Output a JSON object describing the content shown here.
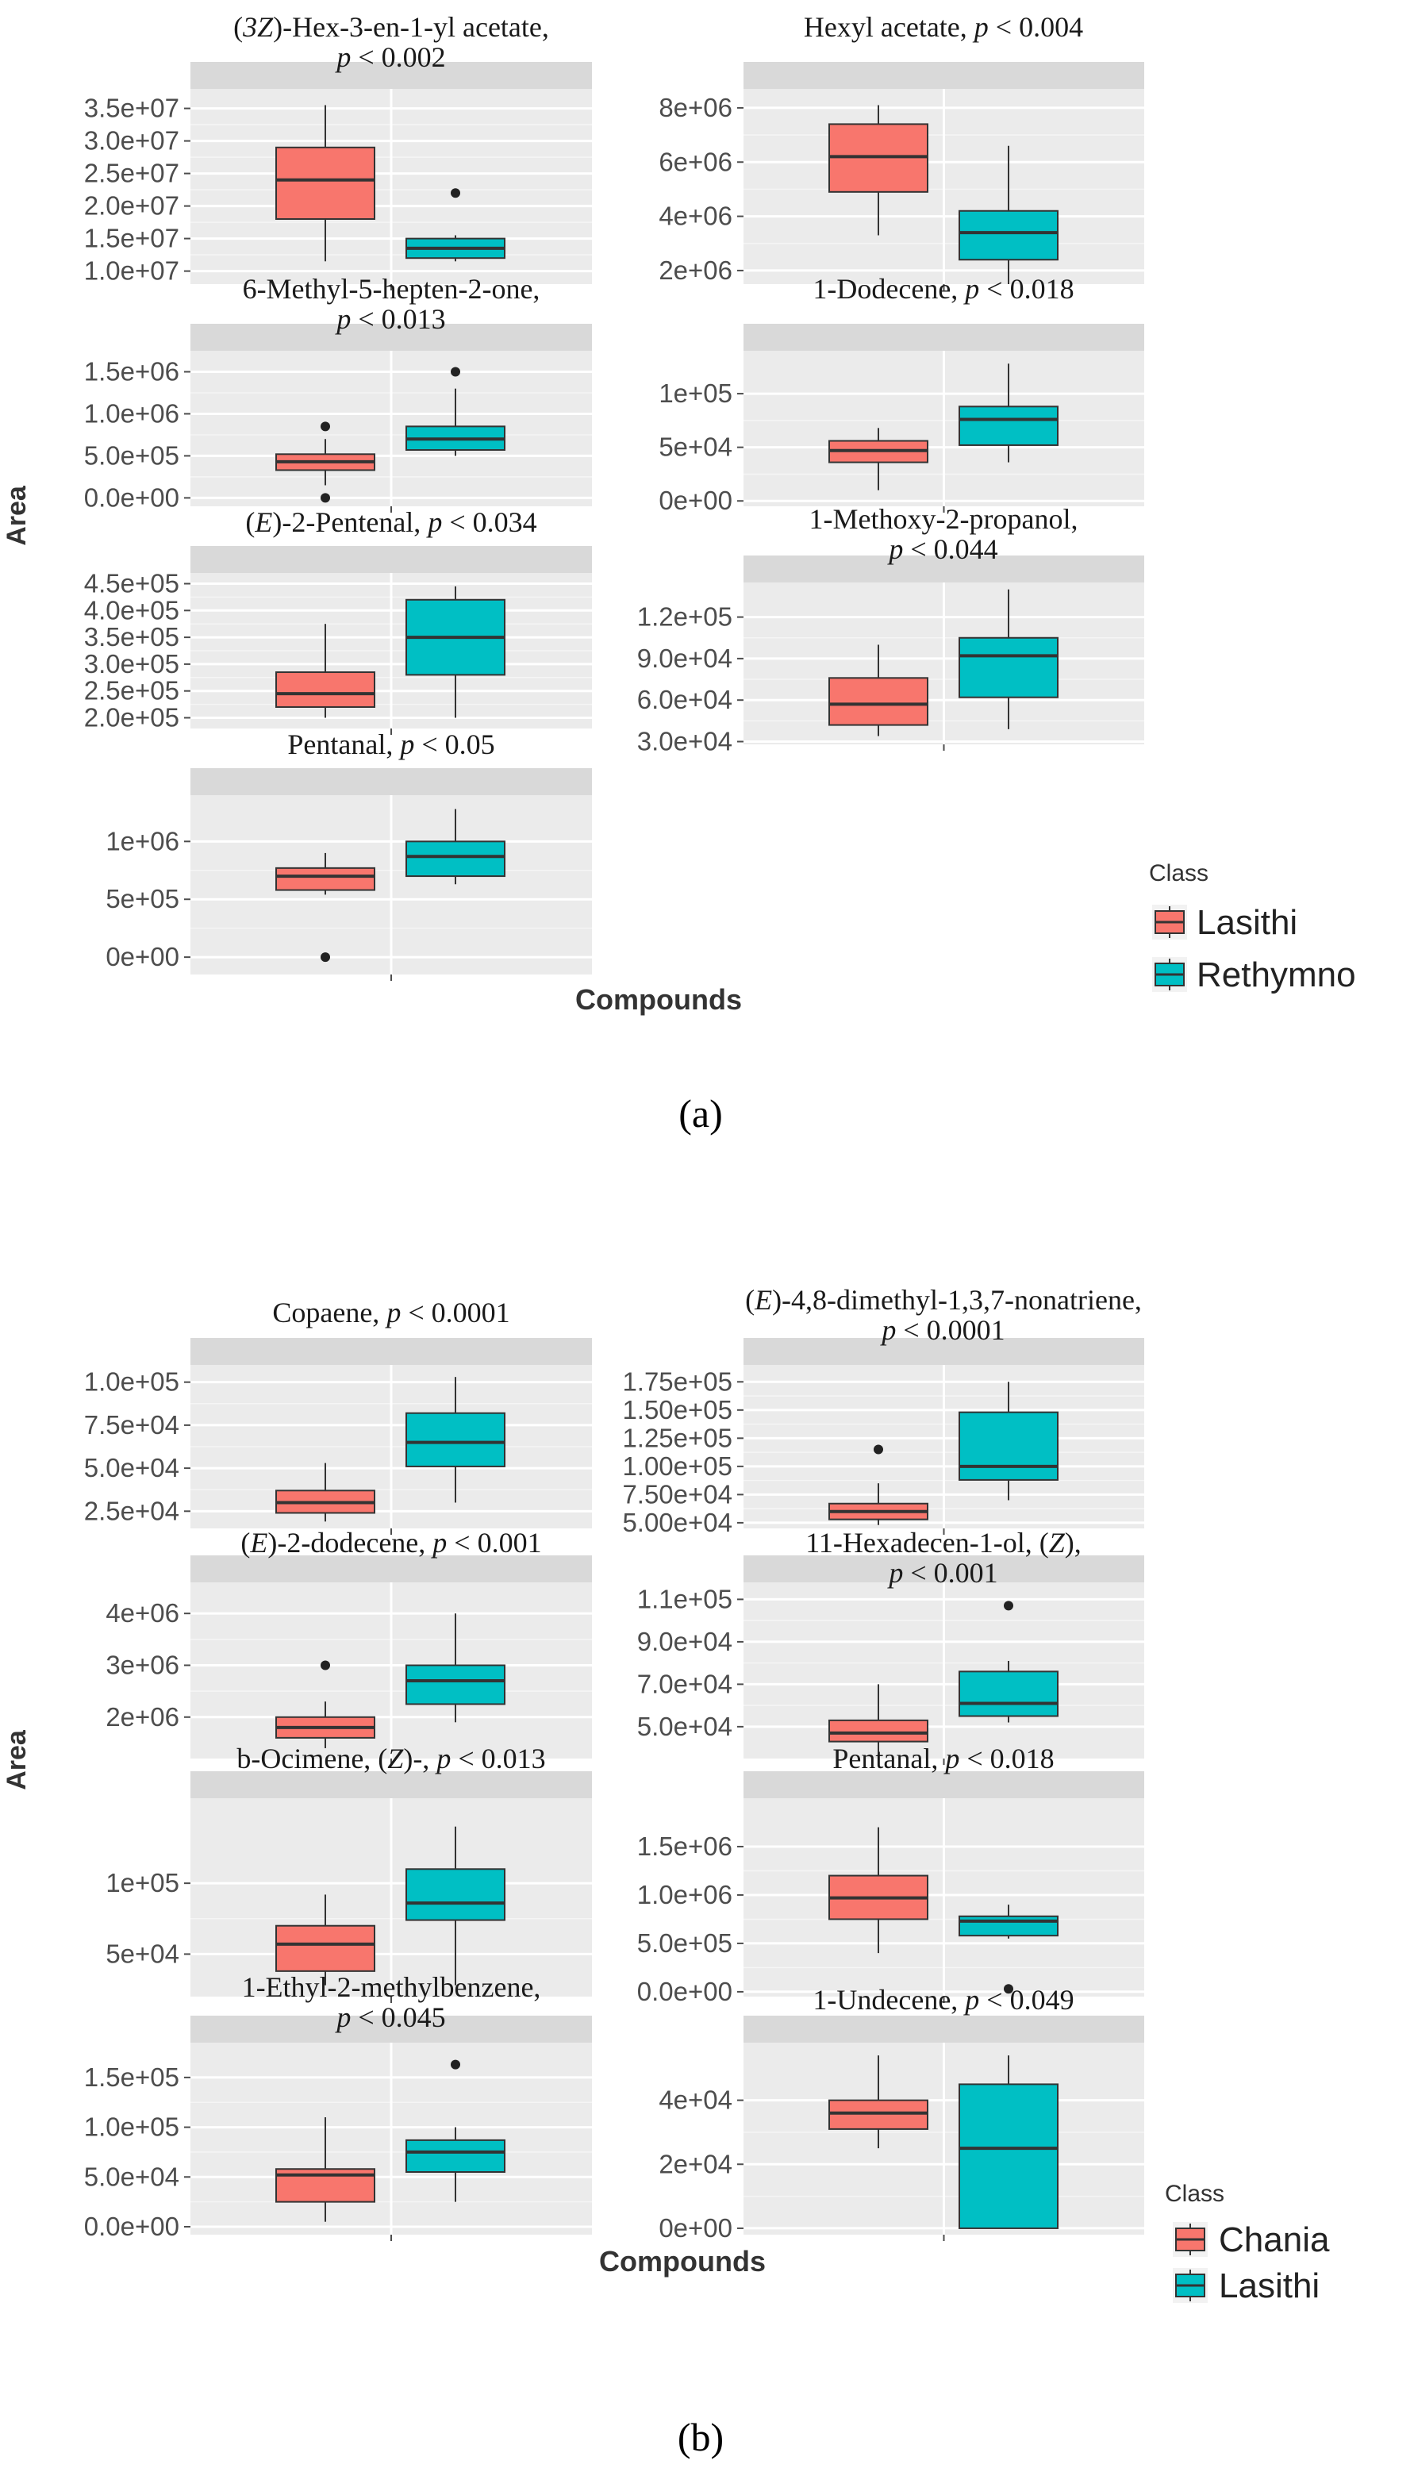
{
  "figure": {
    "captions": [
      "(a)",
      "(b)"
    ]
  },
  "colors": {
    "panel_bg": "#ebebeb",
    "strip_bg": "#d9d9d9",
    "grid_major": "#ffffff",
    "grid_minor": "#f5f5f5",
    "axis_text": "#4d4d4d",
    "series_1": "#f8766d",
    "series_2": "#00bfc4",
    "box_line": "#333333"
  },
  "chart_data": [
    {
      "type": "box",
      "caption": "(a)",
      "xlabel": "Compounds",
      "ylabel": "Area",
      "legend": {
        "title": "Class",
        "position": "right",
        "entries": [
          "Lasithi",
          "Rethymno"
        ]
      },
      "facets": [
        {
          "title_parts": [
            [
              "(",
              ""
            ],
            [
              "3Z",
              "i"
            ],
            [
              ")-Hex-3-en-1-yl acetate,",
              ""
            ]
          ],
          "title_line2": [
            [
              "p",
              "i"
            ],
            [
              " < 0.002",
              ""
            ]
          ],
          "ylim": [
            8000000,
            38000000
          ],
          "ticks": [
            10000000,
            15000000,
            20000000,
            25000000,
            30000000,
            35000000
          ],
          "tick_labels": [
            "1.0e+07",
            "1.5e+07",
            "2.0e+07",
            "2.5e+07",
            "3.0e+07",
            "3.5e+07"
          ],
          "series": [
            {
              "name": "Lasithi",
              "min": 11500000,
              "q1": 18000000,
              "median": 24000000,
              "q3": 29000000,
              "max": 35500000,
              "outliers": []
            },
            {
              "name": "Rethymno",
              "min": 11500000,
              "q1": 12000000,
              "median": 13500000,
              "q3": 15000000,
              "max": 15500000,
              "outliers": [
                22000000
              ]
            }
          ]
        },
        {
          "title_parts": [
            [
              "Hexyl acetate, ",
              ""
            ],
            [
              "p",
              "i"
            ],
            [
              " < 0.004",
              ""
            ]
          ],
          "title_line2": [],
          "ylim": [
            1500000,
            8700000
          ],
          "ticks": [
            2000000,
            4000000,
            6000000,
            8000000
          ],
          "tick_labels": [
            "2e+06",
            "4e+06",
            "6e+06",
            "8e+06"
          ],
          "series": [
            {
              "name": "Lasithi",
              "min": 3300000,
              "q1": 4900000,
              "median": 6200000,
              "q3": 7400000,
              "max": 8100000,
              "outliers": []
            },
            {
              "name": "Rethymno",
              "min": 1500000,
              "q1": 2400000,
              "median": 3400000,
              "q3": 4200000,
              "max": 6600000,
              "outliers": []
            }
          ]
        },
        {
          "title_parts": [
            [
              "6-Methyl-5-hepten-2-one,",
              ""
            ]
          ],
          "title_line2": [
            [
              "p",
              "i"
            ],
            [
              " < 0.013",
              ""
            ]
          ],
          "ylim": [
            -100000,
            1750000
          ],
          "ticks": [
            0,
            500000,
            1000000,
            1500000
          ],
          "tick_labels": [
            "0.0e+00",
            "5.0e+05",
            "1.0e+06",
            "1.5e+06"
          ],
          "series": [
            {
              "name": "Lasithi",
              "min": 150000,
              "q1": 330000,
              "median": 430000,
              "q3": 520000,
              "max": 700000,
              "outliers": [
                850000,
                0
              ]
            },
            {
              "name": "Rethymno",
              "min": 500000,
              "q1": 570000,
              "median": 700000,
              "q3": 850000,
              "max": 1300000,
              "outliers": [
                1500000
              ]
            }
          ]
        },
        {
          "title_parts": [
            [
              "1-Dodecene, ",
              ""
            ],
            [
              "p",
              "i"
            ],
            [
              " < 0.018",
              ""
            ]
          ],
          "title_line2": [],
          "ylim": [
            -5000,
            140000
          ],
          "ticks": [
            0,
            50000,
            100000
          ],
          "tick_labels": [
            "0e+00",
            "5e+04",
            "1e+05"
          ],
          "series": [
            {
              "name": "Lasithi",
              "min": 10000,
              "q1": 36000,
              "median": 47000,
              "q3": 56000,
              "max": 68000,
              "outliers": []
            },
            {
              "name": "Rethymno",
              "min": 36000,
              "q1": 52000,
              "median": 76000,
              "q3": 88000,
              "max": 128000,
              "outliers": []
            }
          ]
        },
        {
          "title_parts": [
            [
              "(",
              ""
            ],
            [
              "E",
              "i"
            ],
            [
              ")-2-Pentenal, ",
              ""
            ],
            [
              "p",
              "i"
            ],
            [
              " < 0.034",
              ""
            ]
          ],
          "title_line2": [],
          "ylim": [
            180000,
            470000
          ],
          "ticks": [
            200000,
            250000,
            300000,
            350000,
            400000,
            450000
          ],
          "tick_labels": [
            "2.0e+05",
            "2.5e+05",
            "3.0e+05",
            "3.5e+05",
            "4.0e+05",
            "4.5e+05"
          ],
          "series": [
            {
              "name": "Lasithi",
              "min": 200000,
              "q1": 220000,
              "median": 245000,
              "q3": 285000,
              "max": 375000,
              "outliers": []
            },
            {
              "name": "Rethymno",
              "min": 200000,
              "q1": 280000,
              "median": 350000,
              "q3": 420000,
              "max": 445000,
              "outliers": []
            }
          ]
        },
        {
          "title_parts": [
            [
              "1-Methoxy-2-propanol,",
              ""
            ]
          ],
          "title_line2": [
            [
              "p",
              "i"
            ],
            [
              " < 0.044",
              ""
            ]
          ],
          "ylim": [
            28000,
            145000
          ],
          "ticks": [
            30000,
            60000,
            90000,
            120000
          ],
          "tick_labels": [
            "3.0e+04",
            "6.0e+04",
            "9.0e+04",
            "1.2e+05"
          ],
          "series": [
            {
              "name": "Lasithi",
              "min": 34000,
              "q1": 42000,
              "median": 57000,
              "q3": 76000,
              "max": 100000,
              "outliers": []
            },
            {
              "name": "Rethymno",
              "min": 39000,
              "q1": 62000,
              "median": 92000,
              "q3": 105000,
              "max": 140000,
              "outliers": []
            }
          ]
        },
        {
          "title_parts": [
            [
              "Pentanal, ",
              ""
            ],
            [
              "p",
              "i"
            ],
            [
              " < 0.05",
              ""
            ]
          ],
          "title_line2": [],
          "ylim": [
            -150000,
            1400000
          ],
          "ticks": [
            0,
            500000,
            1000000
          ],
          "tick_labels": [
            "0e+00",
            "5e+05",
            "1e+06"
          ],
          "series": [
            {
              "name": "Lasithi",
              "min": 540000,
              "q1": 580000,
              "median": 700000,
              "q3": 770000,
              "max": 900000,
              "outliers": [
                0
              ]
            },
            {
              "name": "Rethymno",
              "min": 630000,
              "q1": 700000,
              "median": 870000,
              "q3": 1000000,
              "max": 1280000,
              "outliers": []
            }
          ]
        }
      ]
    },
    {
      "type": "box",
      "caption": "(b)",
      "xlabel": "Compounds",
      "ylabel": "Area",
      "legend": {
        "title": "Class",
        "position": "right",
        "entries": [
          "Chania",
          "Lasithi"
        ]
      },
      "facets": [
        {
          "title_parts": [
            [
              "Copaene, ",
              ""
            ],
            [
              "p",
              "i"
            ],
            [
              " < 0.0001",
              ""
            ]
          ],
          "title_line2": [],
          "ylim": [
            15000,
            110000
          ],
          "ticks": [
            25000,
            50000,
            75000,
            100000
          ],
          "tick_labels": [
            "2.5e+04",
            "5.0e+04",
            "7.5e+04",
            "1.0e+05"
          ],
          "series": [
            {
              "name": "Chania",
              "min": 19000,
              "q1": 24000,
              "median": 30000,
              "q3": 37000,
              "max": 53000,
              "outliers": []
            },
            {
              "name": "Lasithi",
              "min": 30000,
              "q1": 51000,
              "median": 65000,
              "q3": 82000,
              "max": 103000,
              "outliers": []
            }
          ]
        },
        {
          "title_parts": [
            [
              "(",
              ""
            ],
            [
              "E",
              "i"
            ],
            [
              ")-4,8-dimethyl-1,3,7-nonatriene,",
              ""
            ]
          ],
          "title_line2": [
            [
              "p",
              "i"
            ],
            [
              " < 0.0001",
              ""
            ]
          ],
          "ylim": [
            45000,
            190000
          ],
          "ticks": [
            50000,
            75000,
            100000,
            125000,
            150000,
            175000
          ],
          "tick_labels": [
            "5.00e+04",
            "7.50e+04",
            "1.00e+05",
            "1.25e+05",
            "1.50e+05",
            "1.75e+05"
          ],
          "series": [
            {
              "name": "Chania",
              "min": 48000,
              "q1": 53000,
              "median": 60000,
              "q3": 67000,
              "max": 85000,
              "outliers": [
                115000
              ]
            },
            {
              "name": "Lasithi",
              "min": 70000,
              "q1": 88000,
              "median": 100000,
              "q3": 148000,
              "max": 175000,
              "outliers": []
            }
          ]
        },
        {
          "title_parts": [
            [
              "(",
              ""
            ],
            [
              "E",
              "i"
            ],
            [
              ")-2-dodecene, ",
              ""
            ],
            [
              "p",
              "i"
            ],
            [
              " < 0.001",
              ""
            ]
          ],
          "title_line2": [],
          "ylim": [
            1200000,
            4600000
          ],
          "ticks": [
            2000000,
            3000000,
            4000000
          ],
          "tick_labels": [
            "2e+06",
            "3e+06",
            "4e+06"
          ],
          "series": [
            {
              "name": "Chania",
              "min": 1400000,
              "q1": 1600000,
              "median": 1800000,
              "q3": 2000000,
              "max": 2300000,
              "outliers": [
                3000000
              ]
            },
            {
              "name": "Lasithi",
              "min": 1900000,
              "q1": 2250000,
              "median": 2700000,
              "q3": 3000000,
              "max": 4000000,
              "outliers": []
            }
          ]
        },
        {
          "title_parts": [
            [
              "11-Hexadecen-1-ol, (",
              ""
            ],
            [
              "Z",
              "i"
            ],
            [
              "),",
              ""
            ]
          ],
          "title_line2": [
            [
              "p",
              "i"
            ],
            [
              " < 0.001",
              ""
            ]
          ],
          "ylim": [
            35000,
            118000
          ],
          "ticks": [
            50000,
            70000,
            90000,
            110000
          ],
          "tick_labels": [
            "5.0e+04",
            "7.0e+04",
            "9.0e+04",
            "1.1e+05"
          ],
          "series": [
            {
              "name": "Chania",
              "min": 37000,
              "q1": 43000,
              "median": 47000,
              "q3": 53000,
              "max": 70000,
              "outliers": []
            },
            {
              "name": "Lasithi",
              "min": 52000,
              "q1": 55000,
              "median": 61000,
              "q3": 76000,
              "max": 81000,
              "outliers": [
                107000
              ]
            }
          ]
        },
        {
          "title_parts": [
            [
              "b-Ocimene, (",
              ""
            ],
            [
              "Z",
              "i"
            ],
            [
              ")-, ",
              ""
            ],
            [
              "p",
              "i"
            ],
            [
              " < 0.013",
              ""
            ]
          ],
          "title_line2": [],
          "ylim": [
            20000,
            160000
          ],
          "ticks": [
            50000,
            100000
          ],
          "tick_labels": [
            "5e+04",
            "1e+05"
          ],
          "series": [
            {
              "name": "Chania",
              "min": 28000,
              "q1": 38000,
              "median": 57000,
              "q3": 70000,
              "max": 92000,
              "outliers": []
            },
            {
              "name": "Lasithi",
              "min": 28000,
              "q1": 74000,
              "median": 86000,
              "q3": 110000,
              "max": 140000,
              "outliers": []
            }
          ]
        },
        {
          "title_parts": [
            [
              "Pentanal, ",
              ""
            ],
            [
              "p",
              "i"
            ],
            [
              " < 0.018",
              ""
            ]
          ],
          "title_line2": [],
          "ylim": [
            -50000,
            2000000
          ],
          "ticks": [
            0,
            500000,
            1000000,
            1500000
          ],
          "tick_labels": [
            "0.0e+00",
            "5.0e+05",
            "1.0e+06",
            "1.5e+06"
          ],
          "series": [
            {
              "name": "Chania",
              "min": 400000,
              "q1": 750000,
              "median": 970000,
              "q3": 1200000,
              "max": 1700000,
              "outliers": []
            },
            {
              "name": "Lasithi",
              "min": 550000,
              "q1": 580000,
              "median": 730000,
              "q3": 780000,
              "max": 900000,
              "outliers": [
                30000
              ]
            }
          ]
        },
        {
          "title_parts": [
            [
              "1-Ethyl-2-methylbenzene,",
              ""
            ]
          ],
          "title_line2": [
            [
              "p",
              "i"
            ],
            [
              " < 0.045",
              ""
            ]
          ],
          "ylim": [
            -8000,
            185000
          ],
          "ticks": [
            0,
            50000,
            100000,
            150000
          ],
          "tick_labels": [
            "0.0e+00",
            "5.0e+04",
            "1.0e+05",
            "1.5e+05"
          ],
          "series": [
            {
              "name": "Chania",
              "min": 5000,
              "q1": 25000,
              "median": 52000,
              "q3": 58000,
              "max": 110000,
              "outliers": []
            },
            {
              "name": "Lasithi",
              "min": 25000,
              "q1": 55000,
              "median": 75000,
              "q3": 87000,
              "max": 100000,
              "outliers": [
                163000
              ]
            }
          ]
        },
        {
          "title_parts": [
            [
              "1-Undecene, ",
              ""
            ],
            [
              "p",
              "i"
            ],
            [
              " < 0.049",
              ""
            ]
          ],
          "title_line2": [],
          "ylim": [
            -2000,
            58000
          ],
          "ticks": [
            0,
            20000,
            40000
          ],
          "tick_labels": [
            "0e+00",
            "2e+04",
            "4e+04"
          ],
          "series": [
            {
              "name": "Chania",
              "min": 25000,
              "q1": 31000,
              "median": 36000,
              "q3": 40000,
              "max": 54000,
              "outliers": []
            },
            {
              "name": "Lasithi",
              "min": 0,
              "q1": 0,
              "median": 25000,
              "q3": 45000,
              "max": 54000,
              "outliers": []
            }
          ]
        }
      ]
    }
  ]
}
